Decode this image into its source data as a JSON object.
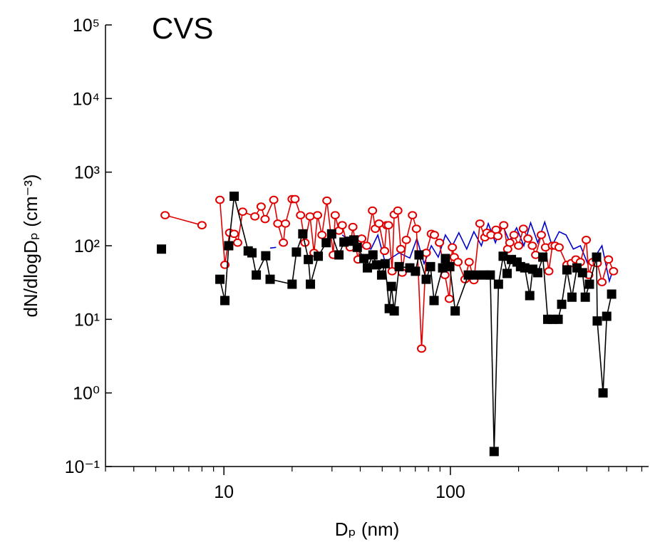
{
  "chart_data": {
    "type": "line",
    "title": "CVS",
    "xlabel": "Dₚ (nm)",
    "ylabel": "dN/dlogDₚ (cm⁻³)",
    "xscale": "log",
    "yscale": "log",
    "xlim": [
      3,
      750
    ],
    "ylim": [
      0.1,
      100000
    ],
    "xticks": [
      10,
      100
    ],
    "xminorticks": [
      3,
      4,
      5,
      6,
      7,
      8,
      9,
      20,
      30,
      40,
      50,
      60,
      70,
      80,
      90,
      200,
      300,
      400,
      500,
      600,
      700
    ],
    "yticks": [
      {
        "value": 0.1,
        "label": "10⁻¹"
      },
      {
        "value": 1,
        "label": "10⁰"
      },
      {
        "value": 10,
        "label": "10¹"
      },
      {
        "value": 100,
        "label": "10²"
      },
      {
        "value": 1000,
        "label": "10³"
      },
      {
        "value": 10000,
        "label": "10⁴"
      },
      {
        "value": 100000,
        "label": "10⁵"
      }
    ],
    "grid": false,
    "series": [
      {
        "color": "#0000cc",
        "marker": "none",
        "x": [
          16,
          17,
          null,
          33.3,
          38.5,
          44.6,
          47.8,
          51.5,
          59.4,
          66.2,
          71.1,
          76.5,
          82.4,
          88.4,
          95,
          102,
          109,
          118,
          127,
          137,
          147,
          158,
          169,
          182,
          196,
          211,
          226,
          243,
          261,
          281,
          302,
          324,
          349,
          375,
          404,
          434,
          467,
          503,
          526
        ],
        "values": [
          93,
          95,
          null,
          140,
          100,
          90,
          140,
          60,
          80,
          68,
          125,
          57,
          100,
          70,
          140,
          100,
          150,
          90,
          155,
          100,
          200,
          110,
          200,
          115,
          175,
          100,
          205,
          110,
          210,
          100,
          155,
          140,
          90,
          100,
          57,
          70,
          100,
          33,
          50
        ]
      },
      {
        "color": "#e00000",
        "marker": "circle",
        "x": [
          5.5,
          8.0,
          null,
          9.6,
          10.1,
          10.6,
          11.1,
          11.5,
          12.1,
          13.7,
          14.6,
          15.2,
          16.6,
          17.3,
          18.3,
          18.7,
          20.0,
          20.6,
          21.8,
          22.8,
          24.0,
          25.0,
          25.9,
          27.1,
          28.5,
          30.4,
          31.0,
          32.2,
          33.3,
          34.8,
          36.1,
          37.1,
          39.1,
          40.6,
          42.7,
          45.3,
          46.6,
          48.4,
          51.2,
          52.3,
          53.3,
          55.3,
          56.5,
          58.6,
          60.4,
          61.3,
          63.9,
          68.0,
          70.8,
          74.6,
          78.2,
          82.4,
          85.0,
          89.5,
          94.6,
          98.9,
          102,
          104,
          108,
          116,
          121,
          127,
          135,
          142,
          145,
          151,
          159,
          162,
          172,
          179,
          183,
          191,
          200,
          210,
          220,
          230,
          238,
          252,
          263,
          272,
          282,
          290,
          302,
          327,
          342,
          358,
          375,
          398,
          408,
          425,
          445,
          467,
          499,
          525
        ],
        "values": [
          260,
          190,
          null,
          420,
          55,
          150,
          145,
          110,
          290,
          250,
          340,
          230,
          420,
          200,
          110,
          200,
          430,
          430,
          260,
          110,
          250,
          80,
          260,
          140,
          410,
          75,
          260,
          160,
          190,
          110,
          95,
          180,
          65,
          125,
          100,
          300,
          170,
          200,
          85,
          190,
          190,
          45,
          265,
          300,
          90,
          43,
          120,
          260,
          170,
          4,
          80,
          145,
          140,
          110,
          40,
          19,
          95,
          70,
          60,
          35,
          60,
          34,
          200,
          130,
          150,
          140,
          165,
          135,
          190,
          90,
          110,
          140,
          100,
          170,
          125,
          100,
          75,
          140,
          95,
          45,
          100,
          100,
          95,
          55,
          58,
          65,
          60,
          120,
          40,
          60,
          58,
          32,
          65,
          45
        ]
      },
      {
        "color": "#000000",
        "marker": "square",
        "x": [
          5.3,
          null,
          9.6,
          10.1,
          10.5,
          11.1,
          12.8,
          13.3,
          13.9,
          15.3,
          16.0,
          20,
          20.9,
          22.3,
          23.6,
          24.1,
          26.1,
          28.3,
          29.9,
          32.2,
          33.9,
          35.6,
          37.5,
          38.8,
          41.5,
          43,
          45.5,
          47.2,
          49.7,
          51.5,
          53.7,
          54.9,
          56.5,
          59.4,
          66.2,
          70.1,
          72.7,
          78.2,
          81.7,
          84.7,
          92.4,
          95.1,
          99.4,
          105,
          120,
          130,
          142,
          150,
          156,
          163,
          171,
          178,
          186,
          197,
          204,
          213,
          224,
          231,
          243,
          256,
          269,
          283,
          299,
          310,
          327,
          344,
          362,
          383,
          394,
          411,
          442,
          445,
          472,
          490,
          515
        ],
        "values": [
          90,
          null,
          35,
          18,
          100,
          470,
          85,
          80,
          40,
          73,
          35,
          30,
          82,
          145,
          65,
          30,
          72,
          110,
          145,
          75,
          112,
          115,
          120,
          95,
          67,
          50,
          75,
          55,
          40,
          57,
          14,
          28,
          13,
          52,
          50,
          45,
          75,
          35,
          52,
          18,
          50,
          67,
          52,
          13,
          40,
          40,
          40,
          40,
          0.16,
          30,
          72,
          42,
          65,
          60,
          52,
          50,
          21,
          48,
          43,
          70,
          10,
          10,
          10,
          16,
          47,
          20,
          50,
          43,
          20,
          30,
          70,
          9.5,
          1.0,
          11,
          22
        ]
      }
    ]
  }
}
